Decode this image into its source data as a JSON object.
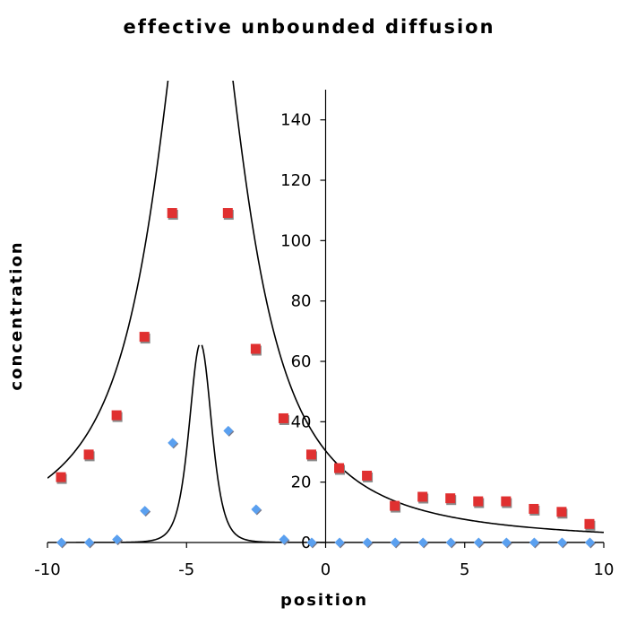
{
  "chart_data": {
    "type": "scatter",
    "title": "effective unbounded diffusion",
    "xlabel": "position",
    "ylabel": "concentration",
    "xlim": [
      -10,
      10
    ],
    "ylim": [
      0,
      150
    ],
    "x_ticks": [
      -10,
      -5,
      0,
      5,
      10
    ],
    "x_tick_labels": [
      "-10",
      "-5",
      "0",
      "5",
      "10"
    ],
    "y_ticks": [
      0,
      20,
      40,
      60,
      80,
      100,
      120,
      140
    ],
    "y_tick_labels": [
      "0",
      "20",
      "40",
      "60",
      "80",
      "100",
      "120",
      "140"
    ],
    "grid": false,
    "legend": "none",
    "series": [
      {
        "marker": "square",
        "color": "#e03030",
        "x": [
          -9.5,
          -8.5,
          -7.5,
          -6.5,
          -5.5,
          -3.5,
          -2.5,
          -1.5,
          -0.5,
          0.5,
          1.5,
          2.5,
          3.5,
          4.5,
          5.5,
          6.5,
          7.5,
          8.5,
          9.5
        ],
        "values": [
          21.5,
          29,
          42,
          68,
          109,
          109,
          64,
          41,
          29,
          24.5,
          22,
          12,
          15,
          14.5,
          13.5,
          13.5,
          11,
          10,
          6
        ]
      },
      {
        "marker": "diamond",
        "color": "#5aa0f0",
        "x": [
          -9.5,
          -8.5,
          -7.5,
          -6.5,
          -5.5,
          -3.5,
          -2.5,
          -1.5,
          -0.5,
          0.5,
          1.5,
          2.5,
          3.5,
          4.5,
          5.5,
          6.5,
          7.5,
          8.5,
          9.5
        ],
        "values": [
          0,
          0,
          1,
          10.5,
          33,
          37,
          11,
          1,
          0,
          0,
          0,
          0,
          0,
          0,
          0,
          0,
          0,
          0,
          0
        ]
      }
    ],
    "fit_curves": [
      {
        "type": "lorentzian",
        "center": -4.5,
        "amplitude": 216,
        "width": 1.82
      },
      {
        "type": "lorentzian",
        "center": -4.5,
        "amplitude": 66,
        "width": 0.92,
        "exponent": 3
      }
    ]
  }
}
